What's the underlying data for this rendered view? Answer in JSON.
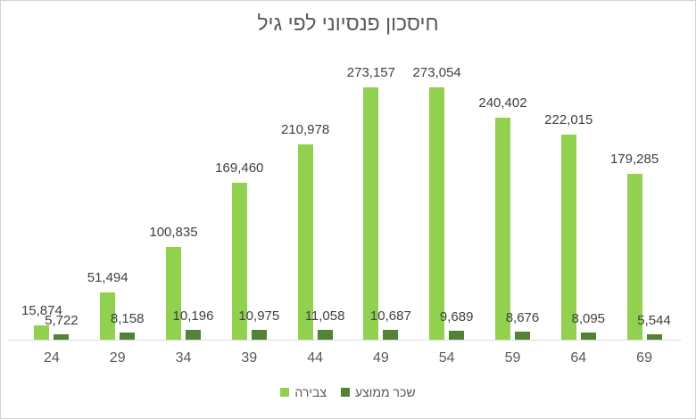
{
  "chart_data": {
    "type": "bar",
    "title": "חיסכון פנסיוני לפי גיל",
    "categories": [
      "24",
      "29",
      "34",
      "39",
      "44",
      "49",
      "54",
      "59",
      "64",
      "69"
    ],
    "series": [
      {
        "name": "צבירה",
        "color": "#92d050",
        "values": [
          15874,
          51494,
          100835,
          169460,
          210978,
          273157,
          273054,
          240402,
          222015,
          179285
        ],
        "labels": [
          "15,874",
          "51,494",
          "100,835",
          "169,460",
          "210,978",
          "273,157",
          "273,054",
          "240,402",
          "222,015",
          "179,285"
        ]
      },
      {
        "name": "שכר ממוצע",
        "color": "#538135",
        "values": [
          5722,
          8158,
          10196,
          10975,
          11058,
          10687,
          9689,
          8676,
          8095,
          5544
        ],
        "labels": [
          "5,722",
          "8,158",
          "10,196",
          "10,975",
          "11,058",
          "10,687",
          "9,689",
          "8,676",
          "8,095",
          "5,544"
        ]
      }
    ],
    "ylim": [
      0,
      273157
    ],
    "grid": false,
    "legend_position": "bottom",
    "data_labels": true,
    "axis_color": "#d9d9d9",
    "text_colors": {
      "title": "#595959",
      "data_label": "#404040",
      "axis_label": "#595959",
      "legend": "#595959"
    }
  }
}
